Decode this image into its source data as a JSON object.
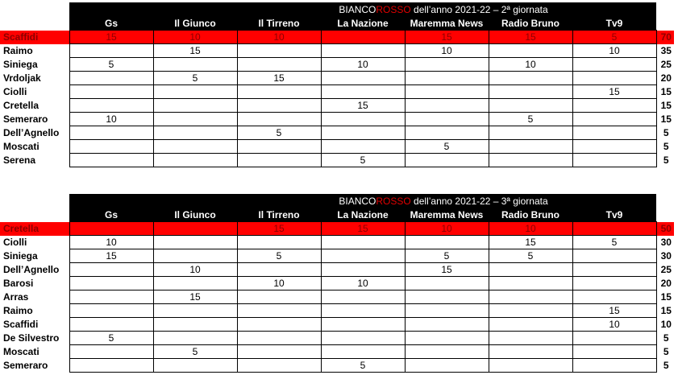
{
  "tables": [
    {
      "title_pre": "BIANCO",
      "title_red": "ROSSO",
      "title_post": " dell’anno 2021-22 – 2ª giornata",
      "columns": [
        "Gs",
        "Il Giunco",
        "Il Tirreno",
        "La Nazione",
        "Maremma News",
        "Radio Bruno",
        "Tv9"
      ],
      "rows": [
        {
          "name": "Scaffidi",
          "values": [
            "15",
            "10",
            "10",
            "",
            "15",
            "15",
            "5"
          ],
          "total": "70",
          "highlight": true
        },
        {
          "name": "Raimo",
          "values": [
            "",
            "15",
            "",
            "",
            "10",
            "",
            "10"
          ],
          "total": "35"
        },
        {
          "name": "Siniega",
          "values": [
            "5",
            "",
            "",
            "10",
            "",
            "10",
            ""
          ],
          "total": "25"
        },
        {
          "name": "Vrdoljak",
          "values": [
            "",
            "5",
            "15",
            "",
            "",
            "",
            ""
          ],
          "total": "20"
        },
        {
          "name": "Ciolli",
          "values": [
            "",
            "",
            "",
            "",
            "",
            "",
            "15"
          ],
          "total": "15"
        },
        {
          "name": "Cretella",
          "values": [
            "",
            "",
            "",
            "15",
            "",
            "",
            ""
          ],
          "total": "15"
        },
        {
          "name": "Semeraro",
          "values": [
            "10",
            "",
            "",
            "",
            "",
            "5",
            ""
          ],
          "total": "15"
        },
        {
          "name": "Dell’Agnello",
          "values": [
            "",
            "",
            "5",
            "",
            "",
            "",
            ""
          ],
          "total": "5"
        },
        {
          "name": "Moscati",
          "values": [
            "",
            "",
            "",
            "",
            "5",
            "",
            ""
          ],
          "total": "5"
        },
        {
          "name": "Serena",
          "values": [
            "",
            "",
            "",
            "5",
            "",
            "",
            ""
          ],
          "total": "5"
        }
      ]
    },
    {
      "title_pre": "BIANCO",
      "title_red": "ROSSO",
      "title_post": " dell’anno 2021-22 – 3ª giornata",
      "columns": [
        "Gs",
        "Il Giunco",
        "Il Tirreno",
        "La Nazione",
        "Maremma News",
        "Radio Bruno",
        "Tv9"
      ],
      "rows": [
        {
          "name": "Cretella",
          "values": [
            "",
            "",
            "15",
            "15",
            "10",
            "10",
            ""
          ],
          "total": "50",
          "highlight": true
        },
        {
          "name": "Ciolli",
          "values": [
            "10",
            "",
            "",
            "",
            "",
            "15",
            "5"
          ],
          "total": "30"
        },
        {
          "name": "Siniega",
          "values": [
            "15",
            "",
            "5",
            "",
            "5",
            "5",
            ""
          ],
          "total": "30"
        },
        {
          "name": "Dell’Agnello",
          "values": [
            "",
            "10",
            "",
            "",
            "15",
            "",
            ""
          ],
          "total": "25"
        },
        {
          "name": "Barosi",
          "values": [
            "",
            "",
            "10",
            "10",
            "",
            "",
            ""
          ],
          "total": "20"
        },
        {
          "name": "Arras",
          "values": [
            "",
            "15",
            "",
            "",
            "",
            "",
            ""
          ],
          "total": "15"
        },
        {
          "name": "Raimo",
          "values": [
            "",
            "",
            "",
            "",
            "",
            "",
            "15"
          ],
          "total": "15"
        },
        {
          "name": "Scaffidi",
          "values": [
            "",
            "",
            "",
            "",
            "",
            "",
            "10"
          ],
          "total": "10"
        },
        {
          "name": "De Silvestro",
          "values": [
            "5",
            "",
            "",
            "",
            "",
            "",
            ""
          ],
          "total": "5"
        },
        {
          "name": "Moscati",
          "values": [
            "",
            "5",
            "",
            "",
            "",
            "",
            ""
          ],
          "total": "5"
        },
        {
          "name": "Semeraro",
          "values": [
            "",
            "",
            "",
            "5",
            "",
            "",
            ""
          ],
          "total": "5"
        }
      ]
    }
  ]
}
